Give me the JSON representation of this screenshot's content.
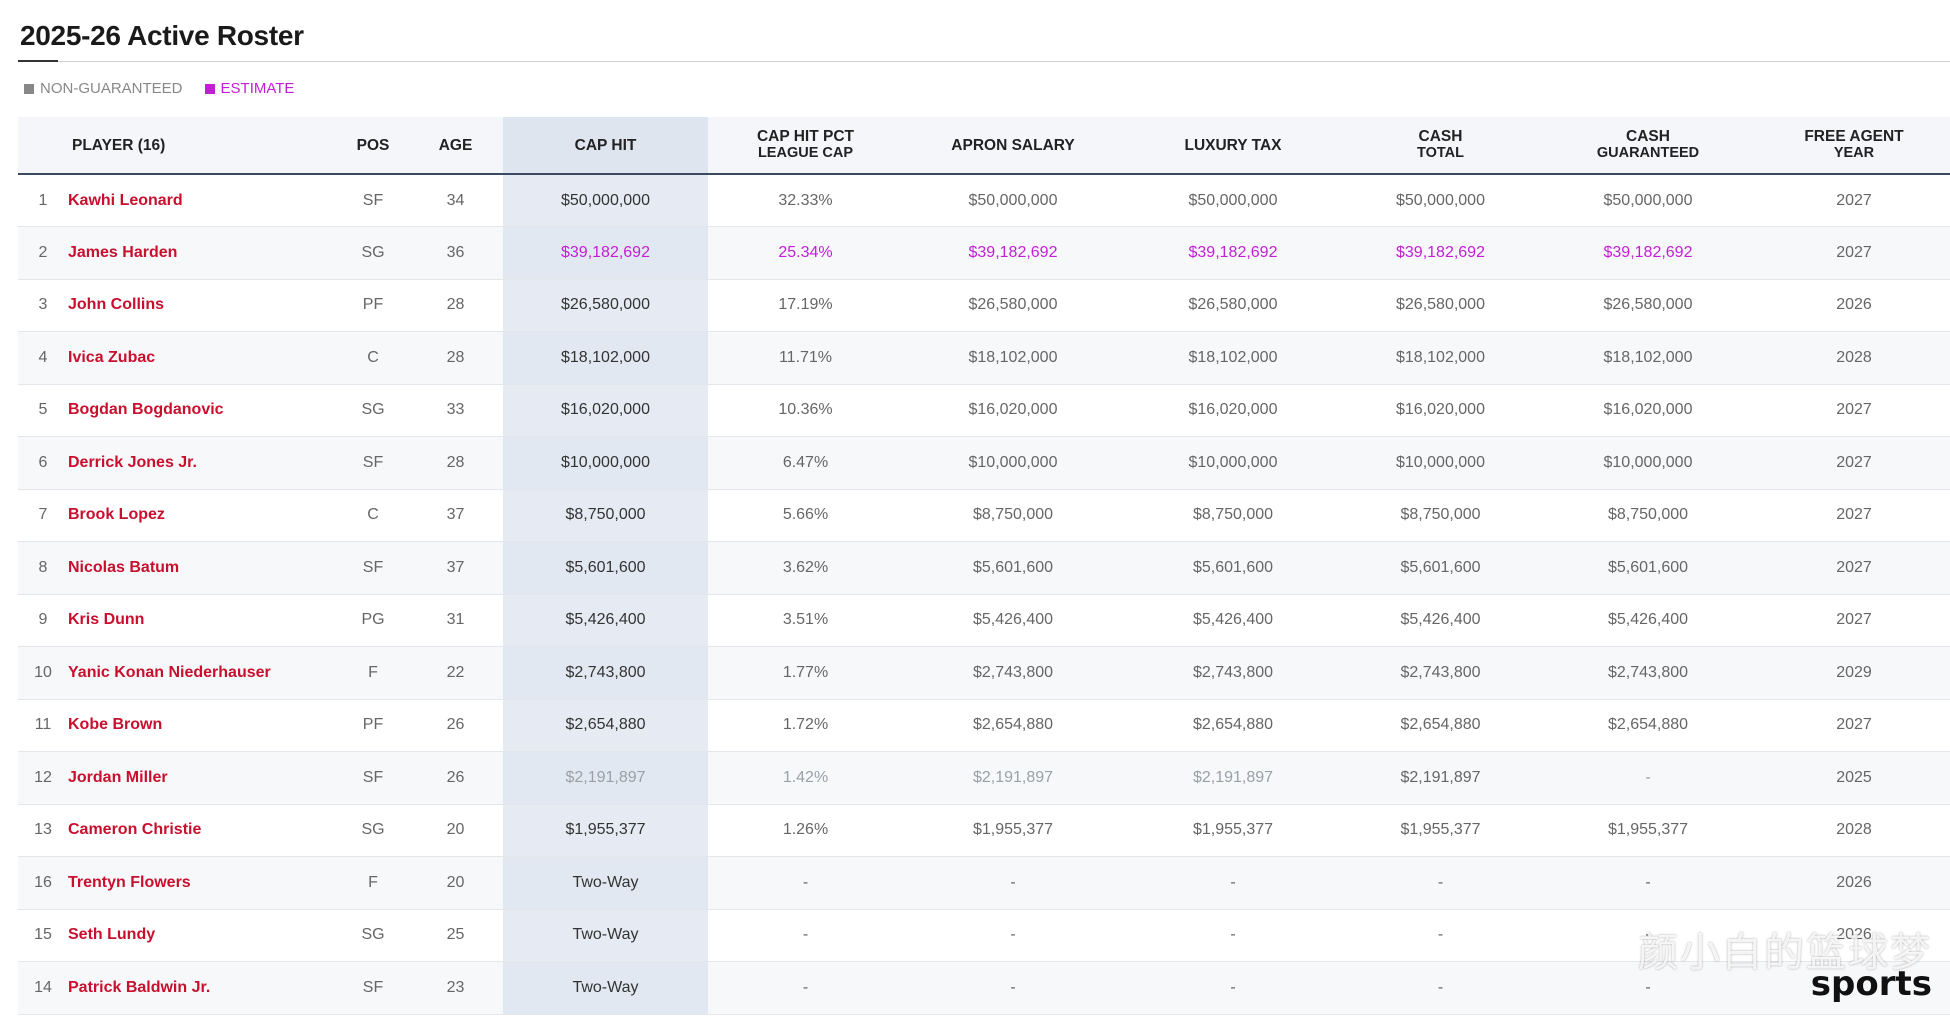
{
  "page": {
    "title": "2025-26 Active Roster"
  },
  "legend": {
    "non_guaranteed": "NON-GUARANTEED",
    "estimate": "ESTIMATE"
  },
  "colors": {
    "player_link": "#c8102e",
    "estimate": "#c21ed6",
    "non_guaranteed": "#9aa0a7"
  },
  "columns": {
    "player": "PLAYER (16)",
    "pos": "POS",
    "age": "AGE",
    "cap_hit": "CAP HIT",
    "cap_pct_1": "CAP HIT PCT",
    "cap_pct_2": "LEAGUE CAP",
    "apron": "APRON SALARY",
    "luxury": "LUXURY TAX",
    "cash_total_1": "CASH",
    "cash_total_2": "TOTAL",
    "cash_guar_1": "CASH",
    "cash_guar_2": "GUARANTEED",
    "fa_1": "FREE AGENT",
    "fa_2": "YEAR"
  },
  "rows": [
    {
      "rank": "1",
      "name": "Kawhi Leonard",
      "pos": "SF",
      "age": "34",
      "cap": "$50,000,000",
      "pct": "32.33%",
      "apron": "$50,000,000",
      "lux": "$50,000,000",
      "ctot": "$50,000,000",
      "cg": "$50,000,000",
      "fa": "2027",
      "style": ""
    },
    {
      "rank": "2",
      "name": "James Harden",
      "pos": "SG",
      "age": "36",
      "cap": "$39,182,692",
      "pct": "25.34%",
      "apron": "$39,182,692",
      "lux": "$39,182,692",
      "ctot": "$39,182,692",
      "cg": "$39,182,692",
      "fa": "2027",
      "style": "estimate"
    },
    {
      "rank": "3",
      "name": "John Collins",
      "pos": "PF",
      "age": "28",
      "cap": "$26,580,000",
      "pct": "17.19%",
      "apron": "$26,580,000",
      "lux": "$26,580,000",
      "ctot": "$26,580,000",
      "cg": "$26,580,000",
      "fa": "2026",
      "style": ""
    },
    {
      "rank": "4",
      "name": "Ivica Zubac",
      "pos": "C",
      "age": "28",
      "cap": "$18,102,000",
      "pct": "11.71%",
      "apron": "$18,102,000",
      "lux": "$18,102,000",
      "ctot": "$18,102,000",
      "cg": "$18,102,000",
      "fa": "2028",
      "style": ""
    },
    {
      "rank": "5",
      "name": "Bogdan Bogdanovic",
      "pos": "SG",
      "age": "33",
      "cap": "$16,020,000",
      "pct": "10.36%",
      "apron": "$16,020,000",
      "lux": "$16,020,000",
      "ctot": "$16,020,000",
      "cg": "$16,020,000",
      "fa": "2027",
      "style": ""
    },
    {
      "rank": "6",
      "name": "Derrick Jones Jr.",
      "pos": "SF",
      "age": "28",
      "cap": "$10,000,000",
      "pct": "6.47%",
      "apron": "$10,000,000",
      "lux": "$10,000,000",
      "ctot": "$10,000,000",
      "cg": "$10,000,000",
      "fa": "2027",
      "style": ""
    },
    {
      "rank": "7",
      "name": "Brook Lopez",
      "pos": "C",
      "age": "37",
      "cap": "$8,750,000",
      "pct": "5.66%",
      "apron": "$8,750,000",
      "lux": "$8,750,000",
      "ctot": "$8,750,000",
      "cg": "$8,750,000",
      "fa": "2027",
      "style": ""
    },
    {
      "rank": "8",
      "name": "Nicolas Batum",
      "pos": "SF",
      "age": "37",
      "cap": "$5,601,600",
      "pct": "3.62%",
      "apron": "$5,601,600",
      "lux": "$5,601,600",
      "ctot": "$5,601,600",
      "cg": "$5,601,600",
      "fa": "2027",
      "style": ""
    },
    {
      "rank": "9",
      "name": "Kris Dunn",
      "pos": "PG",
      "age": "31",
      "cap": "$5,426,400",
      "pct": "3.51%",
      "apron": "$5,426,400",
      "lux": "$5,426,400",
      "ctot": "$5,426,400",
      "cg": "$5,426,400",
      "fa": "2027",
      "style": ""
    },
    {
      "rank": "10",
      "name": "Yanic Konan Niederhauser",
      "pos": "F",
      "age": "22",
      "cap": "$2,743,800",
      "pct": "1.77%",
      "apron": "$2,743,800",
      "lux": "$2,743,800",
      "ctot": "$2,743,800",
      "cg": "$2,743,800",
      "fa": "2029",
      "style": ""
    },
    {
      "rank": "11",
      "name": "Kobe Brown",
      "pos": "PF",
      "age": "26",
      "cap": "$2,654,880",
      "pct": "1.72%",
      "apron": "$2,654,880",
      "lux": "$2,654,880",
      "ctot": "$2,654,880",
      "cg": "$2,654,880",
      "fa": "2027",
      "style": ""
    },
    {
      "rank": "12",
      "name": "Jordan Miller",
      "pos": "SF",
      "age": "26",
      "cap": "$2,191,897",
      "pct": "1.42%",
      "apron": "$2,191,897",
      "lux": "$2,191,897",
      "ctot": "$2,191,897",
      "cg": "-",
      "fa": "2025",
      "style": "nonguaranteed"
    },
    {
      "rank": "13",
      "name": "Cameron Christie",
      "pos": "SG",
      "age": "20",
      "cap": "$1,955,377",
      "pct": "1.26%",
      "apron": "$1,955,377",
      "lux": "$1,955,377",
      "ctot": "$1,955,377",
      "cg": "$1,955,377",
      "fa": "2028",
      "style": ""
    },
    {
      "rank": "16",
      "name": "Trentyn Flowers",
      "pos": "F",
      "age": "20",
      "cap": "Two-Way",
      "pct": "-",
      "apron": "-",
      "lux": "-",
      "ctot": "-",
      "cg": "-",
      "fa": "2026",
      "style": ""
    },
    {
      "rank": "15",
      "name": "Seth Lundy",
      "pos": "SG",
      "age": "25",
      "cap": "Two-Way",
      "pct": "-",
      "apron": "-",
      "lux": "-",
      "ctot": "-",
      "cg": "-",
      "fa": "2026",
      "style": ""
    },
    {
      "rank": "14",
      "name": "Patrick Baldwin Jr.",
      "pos": "SF",
      "age": "23",
      "cap": "Two-Way",
      "pct": "-",
      "apron": "-",
      "lux": "-",
      "ctot": "-",
      "cg": "-",
      "fa": "",
      "style": ""
    }
  ],
  "watermark": {
    "cn": "颜小白的篮球梦",
    "brand": "sports"
  }
}
